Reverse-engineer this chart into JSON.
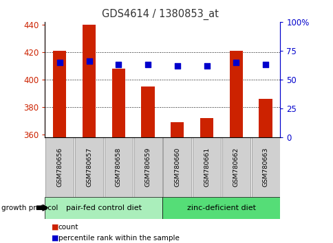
{
  "title": "GDS4614 / 1380853_at",
  "categories": [
    "GSM780656",
    "GSM780657",
    "GSM780658",
    "GSM780659",
    "GSM780660",
    "GSM780661",
    "GSM780662",
    "GSM780663"
  ],
  "bar_values": [
    421,
    440,
    408,
    395,
    369,
    372,
    421,
    386
  ],
  "percentile_values": [
    65,
    66,
    63,
    63,
    62,
    62,
    65,
    63
  ],
  "bar_color": "#cc2200",
  "dot_color": "#0000cc",
  "ymin": 358,
  "ymax": 442,
  "yleft_ticks": [
    360,
    380,
    400,
    420,
    440
  ],
  "yright_ticks": [
    0,
    25,
    50,
    75,
    100
  ],
  "yright_tick_labels": [
    "0",
    "25",
    "50",
    "75",
    "100%"
  ],
  "groups": [
    {
      "label": "pair-fed control diet",
      "start": 0,
      "end": 3,
      "color": "#aaeebb"
    },
    {
      "label": "zinc-deficient diet",
      "start": 4,
      "end": 7,
      "color": "#55dd77"
    }
  ],
  "group_label_prefix": "growth protocol",
  "legend_items": [
    {
      "label": "count",
      "color": "#cc2200"
    },
    {
      "label": "percentile rank within the sample",
      "color": "#0000cc"
    }
  ],
  "title_color": "#333333",
  "left_tick_color": "#cc2200",
  "right_tick_color": "#0000cc",
  "bar_width": 0.45,
  "dot_size": 28,
  "label_box_color": "#d0d0d0",
  "label_box_edge": "#888888"
}
